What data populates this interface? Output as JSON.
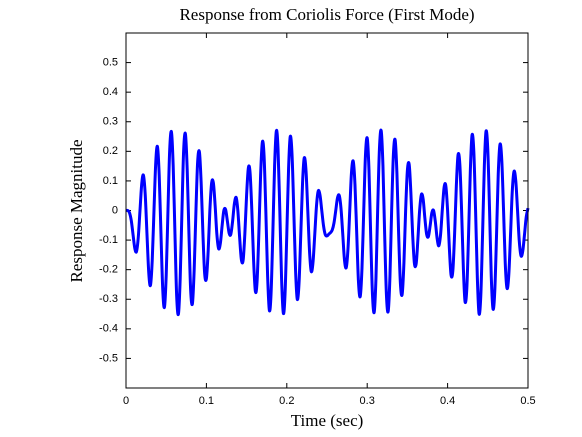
{
  "chart_data": {
    "type": "line",
    "title": "Response from Coriolis Force (First Mode)",
    "xlabel": "Time (sec)",
    "ylabel": "Response Magnitude",
    "xlim": [
      0,
      0.5
    ],
    "ylim": [
      -0.6,
      0.6
    ],
    "xticks": [
      0,
      0.1,
      0.2,
      0.3,
      0.4,
      0.5
    ],
    "yticks": [
      -0.5,
      -0.4,
      -0.3,
      -0.2,
      -0.1,
      0,
      0.1,
      0.2,
      0.3,
      0.4,
      0.5
    ],
    "grid": false,
    "x": [
      0,
      0.0022,
      0.0043,
      0.0065,
      0.0087,
      0.0109,
      0.013,
      0.0152,
      0.0174,
      0.0196,
      0.0217,
      0.0239,
      0.0261,
      0.0283,
      0.0304,
      0.0326,
      0.0348,
      0.037,
      0.0391,
      0.0413,
      0.0435,
      0.0457,
      0.0478,
      0.05,
      0.0522,
      0.0543,
      0.0565,
      0.0587,
      0.0609,
      0.063,
      0.0652,
      0.0674,
      0.0696,
      0.0717,
      0.0739,
      0.0761,
      0.0783,
      0.0804,
      0.0826,
      0.0848,
      0.087,
      0.0891,
      0.0913,
      0.0935,
      0.0957,
      0.0978,
      0.1,
      0.1022,
      0.1043,
      0.1065,
      0.1087,
      0.1109,
      0.113,
      0.1152,
      0.1174,
      0.1196,
      0.1217,
      0.1239,
      0.1261,
      0.1283,
      0.1304,
      0.1326,
      0.1348,
      0.137,
      0.1391,
      0.1413,
      0.1435,
      0.1457,
      0.1478,
      0.15,
      0.1522,
      0.1543,
      0.1565,
      0.1587,
      0.1609,
      0.163,
      0.1652,
      0.1674,
      0.1696,
      0.1717,
      0.1739,
      0.1761,
      0.1783,
      0.1804,
      0.1826,
      0.1848,
      0.187,
      0.1891,
      0.1913,
      0.1935,
      0.1957,
      0.1978,
      0.2,
      0.2022,
      0.2043,
      0.2065,
      0.2087,
      0.2109,
      0.213,
      0.2152,
      0.2174,
      0.2196,
      0.2217,
      0.2239,
      0.2261,
      0.2283,
      0.2304,
      0.2326,
      0.2348,
      0.237,
      0.2391,
      0.2413,
      0.2435,
      0.2457,
      0.2478,
      0.25,
      0.2522,
      0.2543,
      0.2565,
      0.2587,
      0.2609,
      0.263,
      0.2652,
      0.2674,
      0.2696,
      0.2717,
      0.2739,
      0.2761,
      0.2783,
      0.2804,
      0.2826,
      0.2848,
      0.287,
      0.2891,
      0.2913,
      0.2935,
      0.2957,
      0.2978,
      0.3,
      0.3022,
      0.3043,
      0.3065,
      0.3087,
      0.3109,
      0.313,
      0.3152,
      0.3174,
      0.3196,
      0.3217,
      0.3239,
      0.3261,
      0.3283,
      0.3304,
      0.3326,
      0.3348,
      0.337,
      0.3391,
      0.3413,
      0.3435,
      0.3457,
      0.3478,
      0.35,
      0.3522,
      0.3543,
      0.3565,
      0.3587,
      0.3609,
      0.363,
      0.3652,
      0.3674,
      0.3696,
      0.3717,
      0.3739,
      0.3761,
      0.3783,
      0.3804,
      0.3826,
      0.3848,
      0.387,
      0.3891,
      0.3913,
      0.3935,
      0.3957,
      0.3978,
      0.4,
      0.4022,
      0.4043,
      0.4065,
      0.4087,
      0.4109,
      0.413,
      0.4152,
      0.4174,
      0.4196,
      0.4217,
      0.4239,
      0.4261,
      0.4283,
      0.4304,
      0.4326,
      0.4348,
      0.437,
      0.4391,
      0.4413,
      0.4435,
      0.4457,
      0.4478,
      0.45,
      0.4522,
      0.4543,
      0.4565,
      0.4587,
      0.4609,
      0.463,
      0.4652,
      0.4674,
      0.4696,
      0.4717,
      0.4739,
      0.4761,
      0.4783,
      0.4804,
      0.4826,
      0.4848,
      0.487,
      0.4891,
      0.4913,
      0.4935,
      0.4957,
      0.4978,
      0.5
    ],
    "series": [
      {
        "color": "#0000ff",
        "values": [
          0,
          0.0,
          -0.007,
          -0.033,
          -0.08,
          -0.127,
          -0.139,
          -0.093,
          0,
          0.091,
          0.119,
          0.054,
          -0.08,
          -0.21,
          -0.253,
          -0.17,
          0,
          0.162,
          0.216,
          0.119,
          -0.08,
          -0.267,
          -0.327,
          -0.219,
          0,
          0.202,
          0.266,
          0.15,
          -0.08,
          -0.288,
          -0.35,
          -0.23,
          0,
          0.203,
          0.259,
          0.14,
          -0.08,
          -0.268,
          -0.315,
          -0.2,
          0,
          0.164,
          0.198,
          0.092,
          -0.08,
          -0.212,
          -0.23,
          -0.137,
          0,
          0.093,
          0.093,
          0.015,
          -0.08,
          -0.129,
          -0.11,
          -0.05,
          0,
          0.003,
          -0.036,
          -0.077,
          -0.08,
          -0.036,
          0.023,
          0.044,
          0,
          -0.09,
          -0.166,
          -0.168,
          -0.08,
          0.052,
          0.144,
          0.128,
          0,
          -0.168,
          -0.273,
          -0.241,
          -0.08,
          0.118,
          0.231,
          0.186,
          0,
          -0.218,
          -0.337,
          -0.282,
          -0.08,
          0.149,
          0.269,
          0.207,
          0,
          -0.23,
          -0.347,
          -0.283,
          -0.08,
          0.141,
          0.25,
          0.189,
          0,
          -0.202,
          -0.3,
          -0.246,
          -0.08,
          0.094,
          0.178,
          0.134,
          0,
          -0.139,
          -0.206,
          -0.175,
          -0.08,
          0.018,
          0.066,
          0.052,
          0,
          -0.052,
          -0.081,
          -0.086,
          -0.08,
          -0.075,
          -0.066,
          -0.042,
          0,
          0.042,
          0.051,
          0.007,
          -0.08,
          -0.166,
          -0.193,
          -0.13,
          0,
          0.126,
          0.167,
          0.087,
          -0.08,
          -0.239,
          -0.291,
          -0.196,
          0,
          0.184,
          0.245,
          0.137,
          -0.08,
          -0.281,
          -0.344,
          -0.229,
          0,
          0.207,
          0.27,
          0.15,
          -0.08,
          -0.284,
          -0.341,
          -0.222,
          0,
          0.19,
          0.238,
          0.123,
          -0.08,
          -0.247,
          -0.283,
          -0.176,
          0,
          0.136,
          0.156,
          0.061,
          -0.08,
          -0.178,
          -0.18,
          -0.1,
          0,
          0.054,
          0.038,
          -0.025,
          -0.08,
          -0.088,
          -0.051,
          -0.008,
          0,
          -0.039,
          -0.095,
          -0.119,
          -0.08,
          0.005,
          0.079,
          0.083,
          0,
          -0.128,
          -0.218,
          -0.204,
          -0.08,
          0.085,
          0.188,
          0.157,
          0,
          -0.195,
          -0.308,
          -0.263,
          -0.08,
          0.136,
          0.255,
          0.2,
          0,
          -0.228,
          -0.349,
          -0.287,
          -0.08,
          0.15,
          0.268,
          0.204,
          0,
          -0.222,
          -0.333,
          -0.271,
          -0.08,
          0.124,
          0.224,
          0.169,
          0,
          -0.178,
          -0.263,
          -0.218,
          -0.08,
          0.063,
          0.132,
          0.1,
          0,
          -0.102,
          -0.153,
          -0.137,
          -0.08,
          -0.022,
          0.008
        ]
      }
    ]
  }
}
